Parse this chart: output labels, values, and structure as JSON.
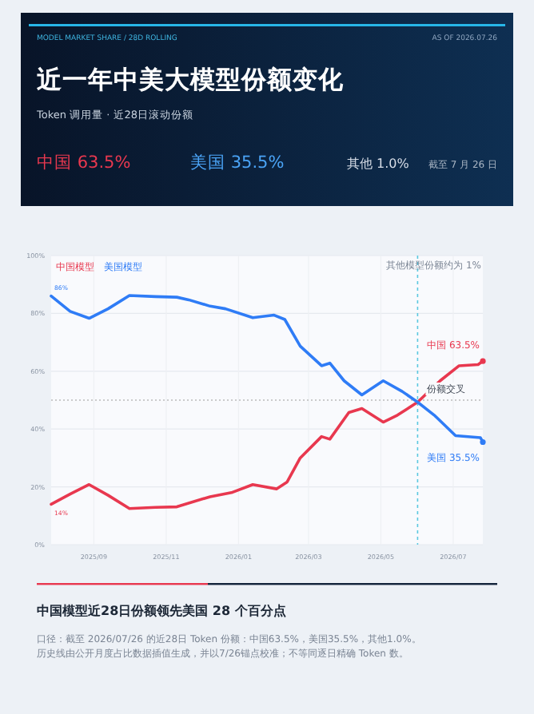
{
  "chart_data": {
    "type": "line",
    "title": "近一年中美大模型份额变化",
    "subtitle": "Token 调用量 · 近28日滚动份额",
    "annotations": [
      "MODEL MARKET SHARE / 28D ROLLING",
      "AS OF 2026.07.26",
      "中国 63.5%",
      "美国 35.5%",
      "其他 1.0%",
      "截至 7 月 26 日",
      "中国模型近28日份额领先美国 28 个百分点",
      "口径：截至 2026/07/26 的近28日 Token 份额：中国63.5%，美国35.5%，其他1.0%。",
      "历史线由公开月度占比数据插值生成，并以7/26锚点校准；不等同逐日精确 Token 数。",
      {
        "text": "86%",
        "x": "2025-07-27",
        "y": 86
      },
      {
        "text": "14%",
        "x": "2025-07-27",
        "y": 14
      },
      {
        "text": "中国 63.5%",
        "x": "2026-07-26",
        "y": 63.5
      },
      {
        "text": "美国 35.5%",
        "x": "2026-07-26",
        "y": 35.5
      },
      {
        "text": "份额交叉",
        "x": "2026-06-01",
        "y": 50
      }
    ],
    "series": [
      {
        "name": "中国模型",
        "color": "#e8384f",
        "x": [
          "2025-07-27",
          "2025-08-12",
          "2025-08-28",
          "2025-09-13",
          "2025-10-01",
          "2025-10-23",
          "2025-11-10",
          "2025-12-08",
          "2025-12-26",
          "2026-01-13",
          "2026-02-02",
          "2026-02-11",
          "2026-02-22",
          "2026-03-12",
          "2026-03-19",
          "2026-04-04",
          "2026-04-15",
          "2026-05-03",
          "2026-05-15",
          "2026-06-01",
          "2026-06-20",
          "2026-07-06",
          "2026-07-22",
          "2026-07-26"
        ],
        "values": [
          14,
          17.5,
          20.8,
          17.1,
          12.5,
          12.9,
          13.1,
          16.6,
          18,
          20.8,
          19.3,
          21.7,
          30,
          37.4,
          36.5,
          45.7,
          47.1,
          42.4,
          44.8,
          49.3,
          56.7,
          61.9,
          62.3,
          63.5
        ]
      },
      {
        "name": "美国模型",
        "color": "#2f7cf6",
        "x": [
          "2025-07-27",
          "2025-08-12",
          "2025-08-28",
          "2025-09-13",
          "2025-10-01",
          "2025-10-23",
          "2025-11-10",
          "2025-11-20",
          "2025-12-08",
          "2025-12-21",
          "2026-01-13",
          "2026-01-31",
          "2026-02-09",
          "2026-02-22",
          "2026-03-12",
          "2026-03-19",
          "2026-03-31",
          "2026-04-15",
          "2026-05-03",
          "2026-05-19",
          "2026-06-01",
          "2026-06-15",
          "2026-07-03",
          "2026-07-24",
          "2026-07-26"
        ],
        "values": [
          86,
          80.7,
          78.3,
          81.6,
          86.2,
          85.8,
          85.6,
          84.7,
          82.5,
          81.6,
          78.5,
          79.4,
          77.9,
          68.7,
          61.9,
          62.8,
          56.7,
          51.8,
          56.7,
          53,
          49.3,
          44.8,
          37.7,
          37,
          35.5
        ]
      }
    ],
    "xlim": [
      "2025-07-27",
      "2026-07-26"
    ],
    "ylim": [
      0,
      100
    ],
    "xticks": [
      {
        "value": "2025-09-01",
        "label": "2025/09"
      },
      {
        "value": "2025-11-01",
        "label": "2025/11"
      },
      {
        "value": "2026-01-01",
        "label": "2026/01"
      },
      {
        "value": "2026-03-01",
        "label": "2026/03"
      },
      {
        "value": "2026-05-01",
        "label": "2026/05"
      },
      {
        "value": "2026-07-01",
        "label": "2026/07"
      }
    ],
    "yticks": [
      {
        "value": 0,
        "label": "0%"
      },
      {
        "value": 20,
        "label": "20%"
      },
      {
        "value": 40,
        "label": "40%"
      },
      {
        "value": 60,
        "label": "60%"
      },
      {
        "value": 80,
        "label": "80%"
      },
      {
        "value": 100,
        "label": "100%"
      }
    ],
    "ref_lines": [
      {
        "axis": "y",
        "value": 50,
        "color": "#bbbbbb",
        "line_style": "dotted"
      },
      {
        "axis": "x",
        "value": "2026-06-01",
        "label": "其他模型份额约为 1%",
        "color": "#5bc8e0",
        "line_style": "dashed"
      }
    ],
    "grid": true,
    "legend": "top left",
    "marker": "none",
    "line_style": "solid"
  }
}
